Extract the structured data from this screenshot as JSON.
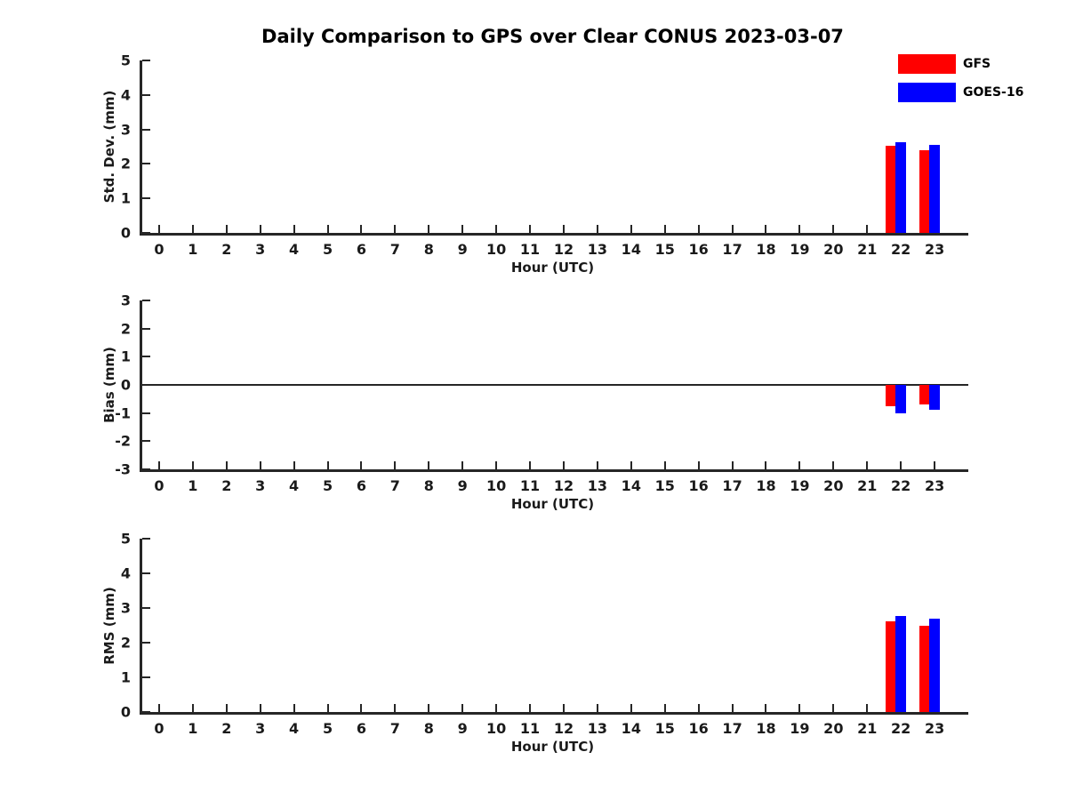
{
  "title": "Daily Comparison to GPS over Clear CONUS 2023-03-07",
  "colors": {
    "gfs": "#ff0000",
    "goes16": "#0000ff",
    "axis": "#262626",
    "background": "#ffffff"
  },
  "legend": {
    "position": "upper-right-outside",
    "items": [
      {
        "label": "GFS",
        "color": "#ff0000"
      },
      {
        "label": "GOES-16",
        "color": "#0000ff"
      }
    ]
  },
  "chart_data": [
    {
      "type": "bar",
      "title": "Daily Comparison to GPS over Clear CONUS 2023-03-07",
      "ylabel": "Std. Dev. (mm)",
      "xlabel": "Hour (UTC)",
      "ylim": [
        0,
        5
      ],
      "yticks": [
        0,
        1,
        2,
        3,
        4,
        5
      ],
      "xlim": [
        -0.5,
        24
      ],
      "xticks": [
        0,
        1,
        2,
        3,
        4,
        5,
        6,
        7,
        8,
        9,
        10,
        11,
        12,
        13,
        14,
        15,
        16,
        17,
        18,
        19,
        20,
        21,
        22,
        23
      ],
      "grid": false,
      "zero_line": false,
      "series": [
        {
          "name": "GFS",
          "color": "#ff0000",
          "points": [
            {
              "hour": 22,
              "value": 2.52
            },
            {
              "hour": 23,
              "value": 2.4
            }
          ]
        },
        {
          "name": "GOES-16",
          "color": "#0000ff",
          "points": [
            {
              "hour": 22,
              "value": 2.63
            },
            {
              "hour": 23,
              "value": 2.54
            }
          ]
        }
      ]
    },
    {
      "type": "bar",
      "title": "",
      "ylabel": "Bias (mm)",
      "xlabel": "Hour (UTC)",
      "ylim": [
        -3,
        3
      ],
      "yticks": [
        -3,
        -2,
        -1,
        0,
        1,
        2,
        3
      ],
      "xlim": [
        -0.5,
        24
      ],
      "xticks": [
        0,
        1,
        2,
        3,
        4,
        5,
        6,
        7,
        8,
        9,
        10,
        11,
        12,
        13,
        14,
        15,
        16,
        17,
        18,
        19,
        20,
        21,
        22,
        23
      ],
      "grid": false,
      "zero_line": true,
      "series": [
        {
          "name": "GFS",
          "color": "#ff0000",
          "points": [
            {
              "hour": 22,
              "value": -0.77
            },
            {
              "hour": 23,
              "value": -0.7
            }
          ]
        },
        {
          "name": "GOES-16",
          "color": "#0000ff",
          "points": [
            {
              "hour": 22,
              "value": -1.0
            },
            {
              "hour": 23,
              "value": -0.88
            }
          ]
        }
      ]
    },
    {
      "type": "bar",
      "title": "",
      "ylabel": "RMS (mm)",
      "xlabel": "Hour (UTC)",
      "ylim": [
        0,
        5
      ],
      "yticks": [
        0,
        1,
        2,
        3,
        4,
        5
      ],
      "xlim": [
        -0.5,
        24
      ],
      "xticks": [
        0,
        1,
        2,
        3,
        4,
        5,
        6,
        7,
        8,
        9,
        10,
        11,
        12,
        13,
        14,
        15,
        16,
        17,
        18,
        19,
        20,
        21,
        22,
        23
      ],
      "grid": false,
      "zero_line": false,
      "series": [
        {
          "name": "GFS",
          "color": "#ff0000",
          "points": [
            {
              "hour": 22,
              "value": 2.61
            },
            {
              "hour": 23,
              "value": 2.48
            }
          ]
        },
        {
          "name": "GOES-16",
          "color": "#0000ff",
          "points": [
            {
              "hour": 22,
              "value": 2.78
            },
            {
              "hour": 23,
              "value": 2.69
            }
          ]
        }
      ]
    }
  ]
}
